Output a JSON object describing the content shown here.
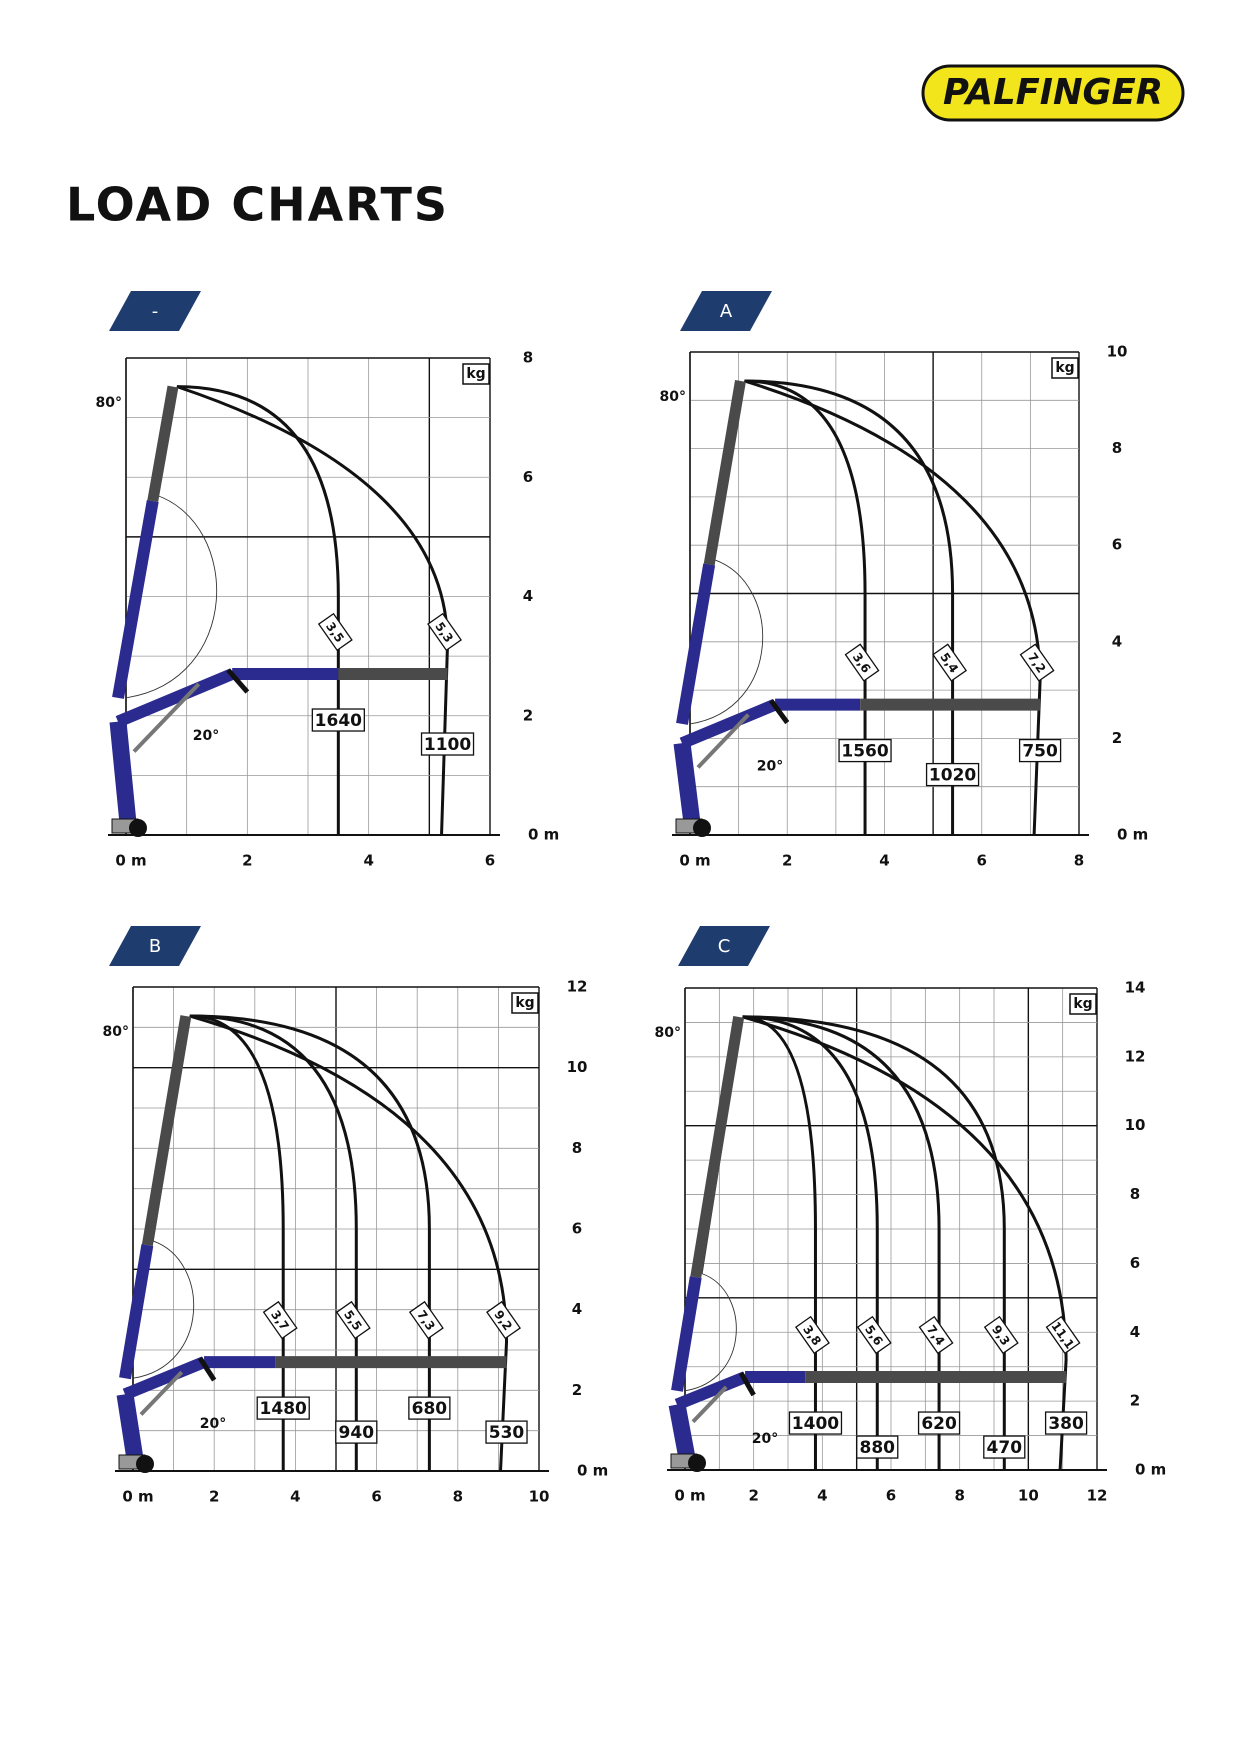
{
  "header": {
    "brand": "PALFINGER",
    "title": "LOAD CHARTS"
  },
  "chart_data": [
    {
      "type": "line",
      "tab": "-",
      "unit": "kg",
      "angles": [
        "80°",
        "20°"
      ],
      "xlim": [
        0,
        6
      ],
      "xticks": [
        {
          "value": 0,
          "label": "0 m"
        },
        2,
        4,
        6
      ],
      "ylim": [
        0,
        8
      ],
      "yticks": [
        {
          "value": 0,
          "label": "0 m"
        },
        2,
        4,
        6,
        8
      ],
      "outreach": {
        "values": [
          3.5,
          5.3
        ],
        "value_labels": [
          "3,5",
          "5,3"
        ]
      },
      "loads": [
        1640,
        1100
      ]
    },
    {
      "type": "line",
      "tab": "A",
      "unit": "kg",
      "angles": [
        "80°",
        "20°"
      ],
      "xlim": [
        0,
        8
      ],
      "xticks": [
        {
          "value": 0,
          "label": "0 m"
        },
        2,
        4,
        6,
        8
      ],
      "ylim": [
        0,
        10
      ],
      "yticks": [
        {
          "value": 0,
          "label": "0 m"
        },
        2,
        4,
        6,
        8,
        10
      ],
      "outreach": {
        "values": [
          3.6,
          5.4,
          7.2
        ],
        "value_labels": [
          "3,6",
          "5,4",
          "7,2"
        ]
      },
      "loads": [
        1560,
        1020,
        750
      ]
    },
    {
      "type": "line",
      "tab": "B",
      "unit": "kg",
      "angles": [
        "80°",
        "20°"
      ],
      "xlim": [
        0,
        10
      ],
      "xticks": [
        {
          "value": 0,
          "label": "0 m"
        },
        2,
        4,
        6,
        8,
        10
      ],
      "ylim": [
        0,
        12
      ],
      "yticks": [
        {
          "value": 0,
          "label": "0 m"
        },
        2,
        4,
        6,
        8,
        10,
        12
      ],
      "outreach": {
        "values": [
          3.7,
          5.5,
          7.3,
          9.2
        ],
        "value_labels": [
          "3,7",
          "5,5",
          "7,3",
          "9,2"
        ]
      },
      "loads": [
        1480,
        940,
        680,
        530
      ]
    },
    {
      "type": "line",
      "tab": "C",
      "unit": "kg",
      "angles": [
        "80°",
        "20°"
      ],
      "xlim": [
        0,
        12
      ],
      "xticks": [
        {
          "value": 0,
          "label": "0 m"
        },
        2,
        4,
        6,
        8,
        10,
        12
      ],
      "ylim": [
        0,
        14
      ],
      "yticks": [
        {
          "value": 0,
          "label": "0 m"
        },
        2,
        4,
        6,
        8,
        10,
        12,
        14
      ],
      "outreach": {
        "values": [
          3.8,
          5.6,
          7.4,
          9.3,
          11.1
        ],
        "value_labels": [
          "3,8",
          "5,6",
          "7,4",
          "9,3",
          "11,1"
        ]
      },
      "loads": [
        1400,
        880,
        620,
        470,
        380
      ]
    }
  ]
}
